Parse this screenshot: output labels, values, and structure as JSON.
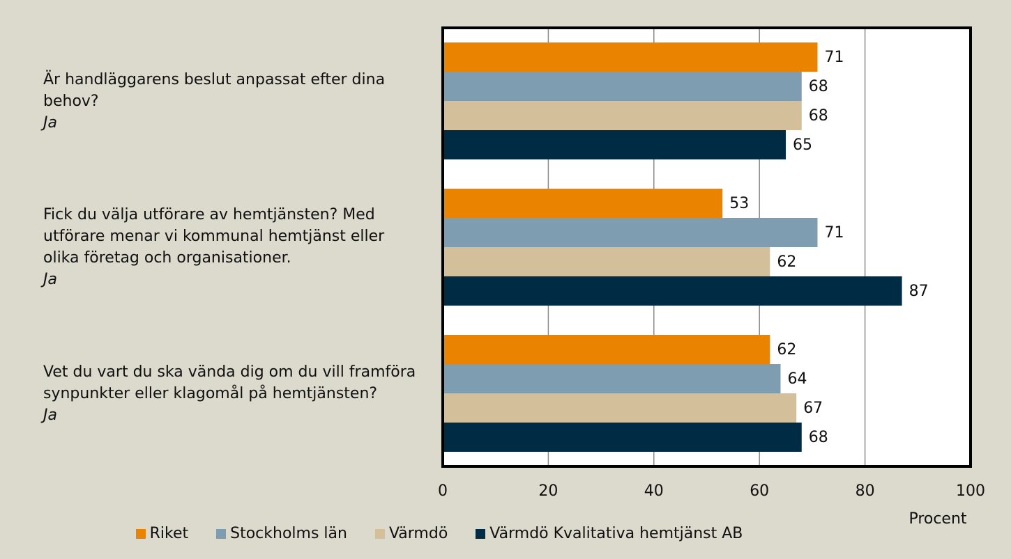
{
  "chart_data": {
    "type": "barh",
    "categories": [
      "Är handläggarens beslut anpassat efter dina behov?",
      "Fick du välja utförare av hemtjänsten? Med utförare menar vi kommunal hemtjänst eller olika företag och organisationer.",
      "Vet du vart du ska vända dig om du vill framföra synpunkter eller klagomål på hemtjänsten?"
    ],
    "category_sublabels": [
      "Ja",
      "Ja",
      "Ja"
    ],
    "series": [
      {
        "name": "Riket",
        "color": "#e98300",
        "values": [
          71,
          53,
          62
        ]
      },
      {
        "name": "Stockholms län",
        "color": "#7f9db0",
        "values": [
          68,
          71,
          64
        ]
      },
      {
        "name": "Värmdö",
        "color": "#d3c09a",
        "values": [
          68,
          62,
          67
        ]
      },
      {
        "name": "Värmdö Kvalitativa hemtjänst AB",
        "color": "#002b45",
        "values": [
          65,
          87,
          68
        ]
      }
    ],
    "xlabel": "Procent",
    "xlim": [
      0,
      100
    ],
    "xticks": [
      0,
      20,
      40,
      60,
      80,
      100
    ],
    "grid": true,
    "legend": "bottom"
  }
}
